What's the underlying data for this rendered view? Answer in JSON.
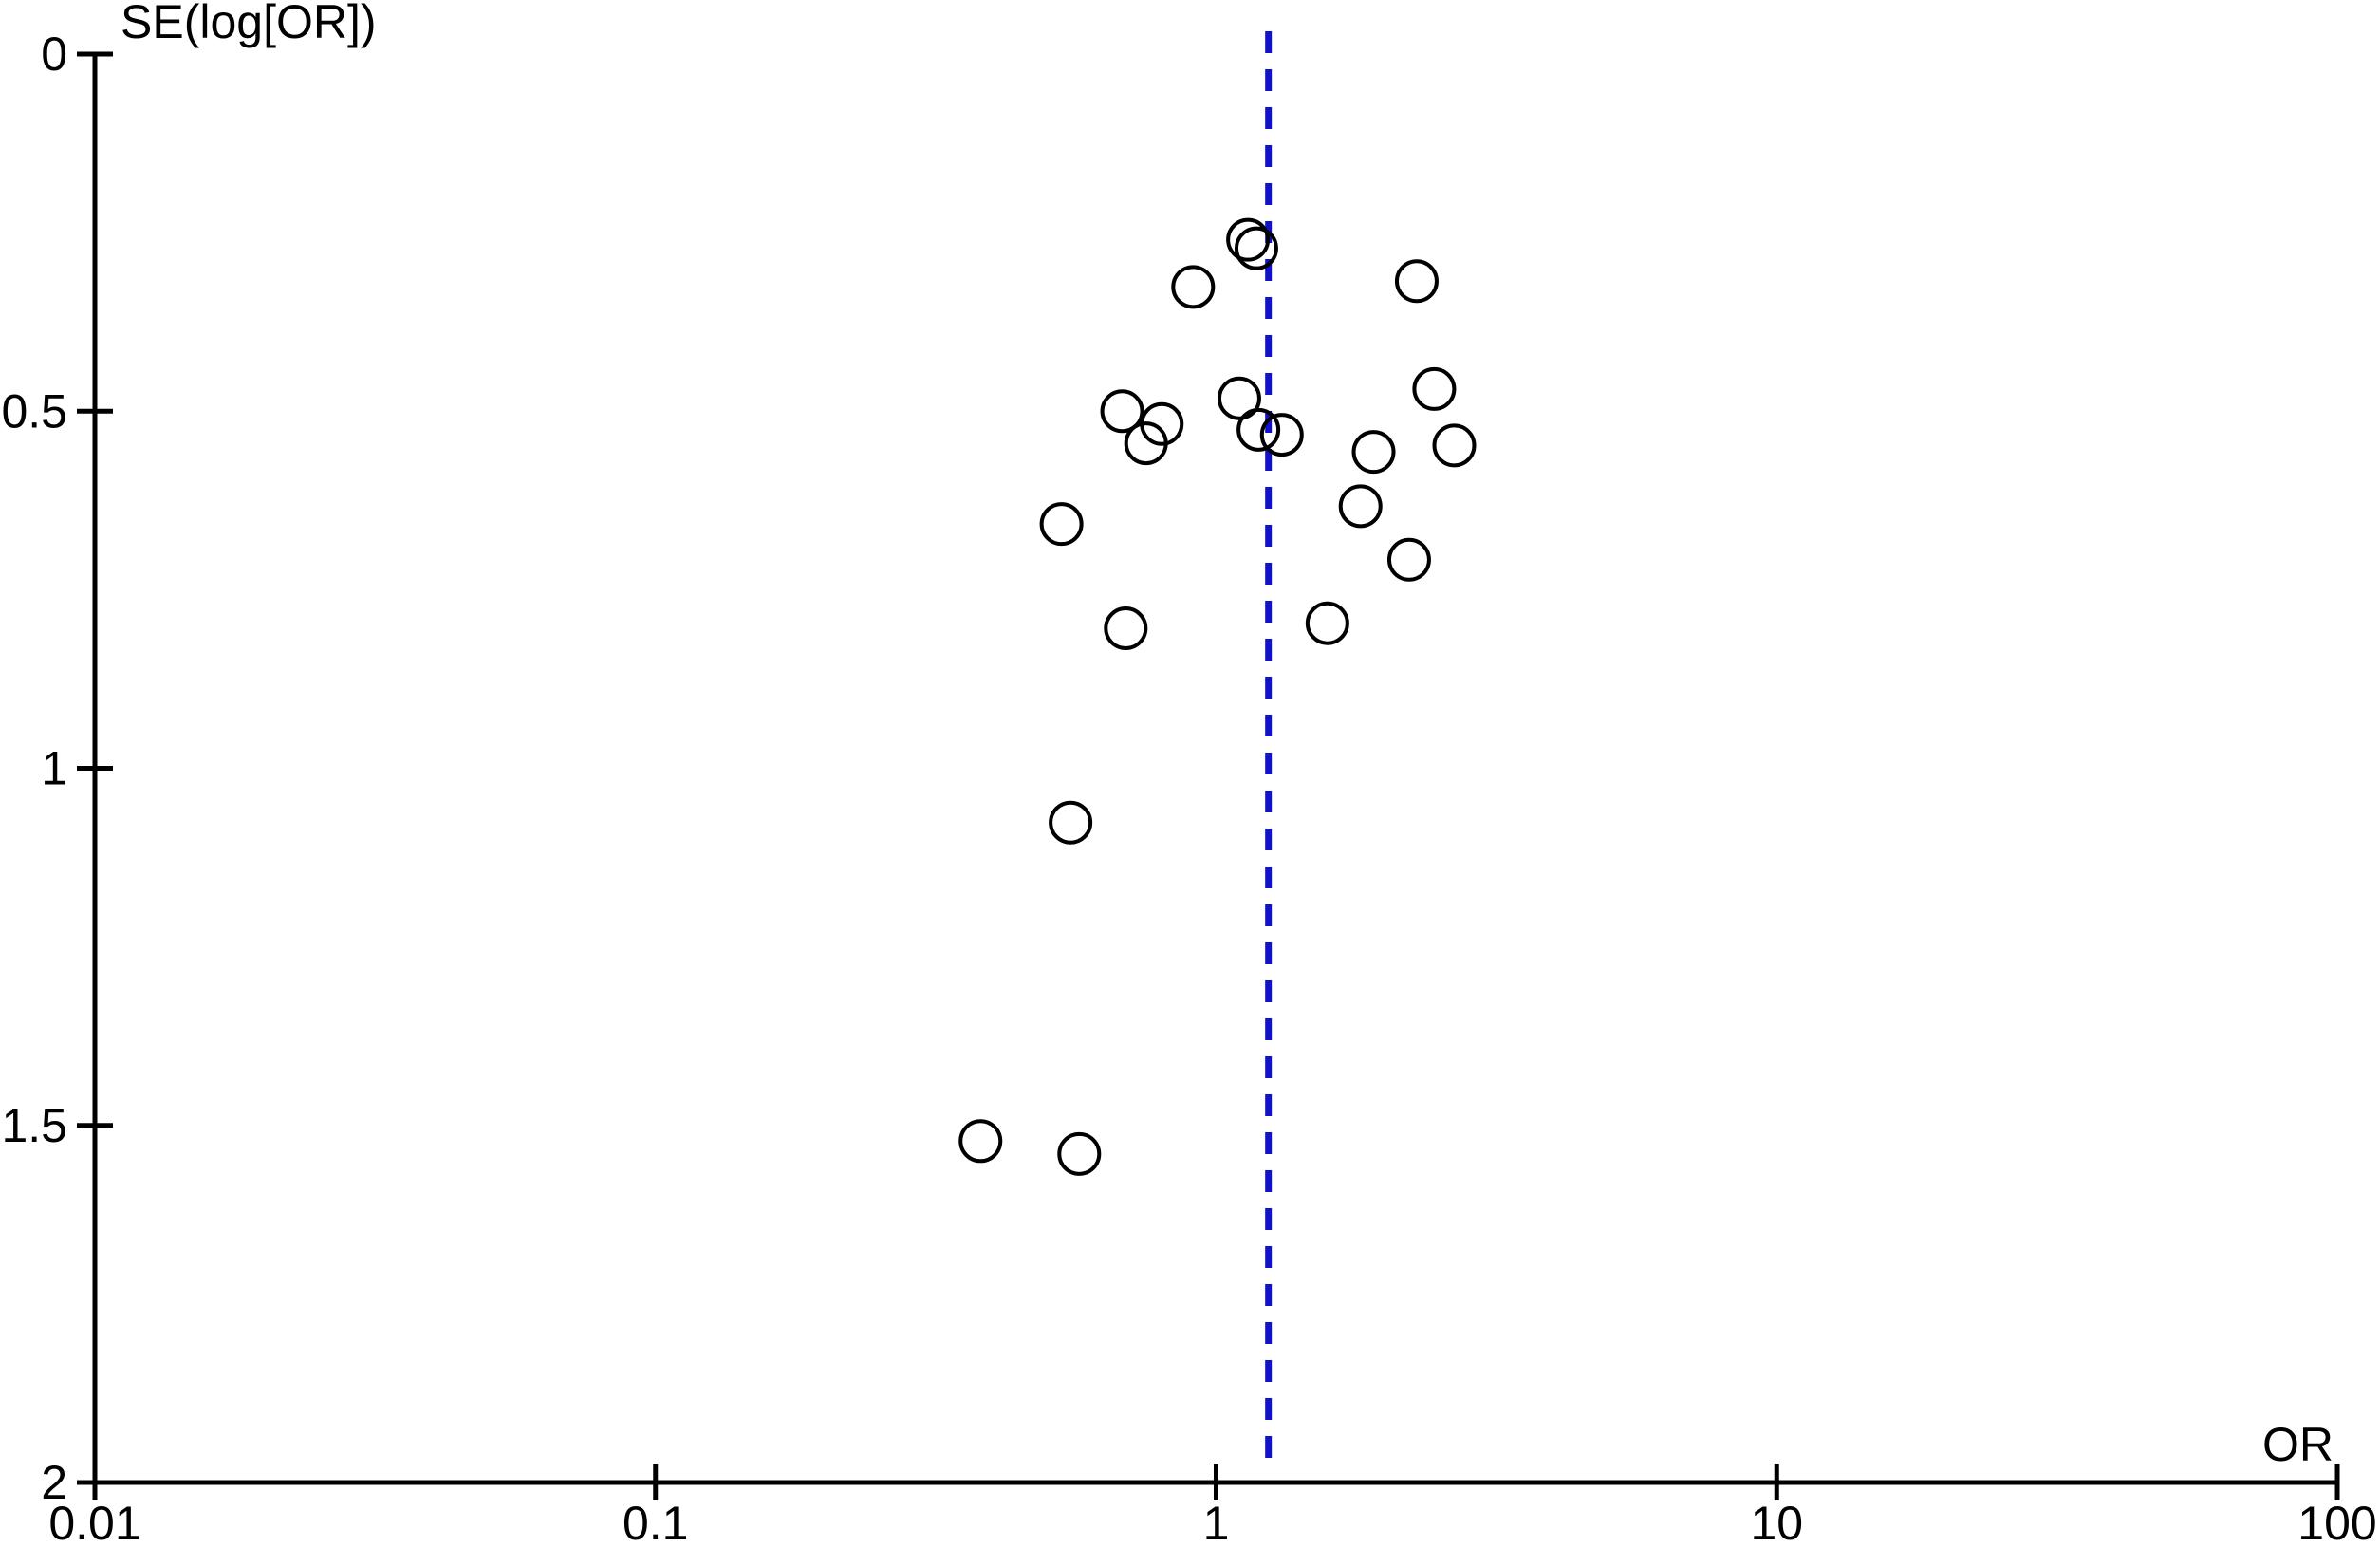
{
  "figure": {
    "background": "#ffffff",
    "axis_color": "#000000",
    "marker_color": "#000000"
  },
  "chart_data": {
    "type": "scatter",
    "subtype": "funnel-plot",
    "title": "",
    "xlabel": "OR",
    "ylabel": "SE(log[OR])",
    "x_scale": "log",
    "xlim": [
      0.01,
      100
    ],
    "x_tick_values": [
      0.01,
      0.1,
      1,
      10,
      100
    ],
    "x_tick_labels": [
      "0.01",
      "0.1",
      "1",
      "10",
      "100"
    ],
    "ylim": [
      0,
      2
    ],
    "y_inverted": true,
    "y_tick_values": [
      0,
      0.5,
      1,
      1.5,
      2
    ],
    "y_tick_labels": [
      "0",
      "0.5",
      "1",
      "1.5",
      "2"
    ],
    "grid": false,
    "legend": "none",
    "reference_line": {
      "or": 1.24,
      "style": "dashed",
      "color": "#1111cc"
    },
    "marker": {
      "shape": "open-circle",
      "stroke_color": "#000000",
      "fill": "none"
    },
    "points": [
      {
        "or": 1.14,
        "se": 0.26
      },
      {
        "or": 1.18,
        "se": 0.272
      },
      {
        "or": 0.91,
        "se": 0.326
      },
      {
        "or": 2.28,
        "se": 0.318
      },
      {
        "or": 0.68,
        "se": 0.5
      },
      {
        "or": 0.8,
        "se": 0.518
      },
      {
        "or": 0.75,
        "se": 0.545
      },
      {
        "or": 1.1,
        "se": 0.482
      },
      {
        "or": 1.19,
        "se": 0.526
      },
      {
        "or": 1.31,
        "se": 0.533
      },
      {
        "or": 2.45,
        "se": 0.469
      },
      {
        "or": 1.91,
        "se": 0.557
      },
      {
        "or": 2.66,
        "se": 0.548
      },
      {
        "or": 1.81,
        "se": 0.633
      },
      {
        "or": 0.53,
        "se": 0.658
      },
      {
        "or": 2.21,
        "se": 0.708
      },
      {
        "or": 0.69,
        "se": 0.804
      },
      {
        "or": 1.58,
        "se": 0.797
      },
      {
        "or": 0.55,
        "se": 1.076
      },
      {
        "or": 0.38,
        "se": 1.522
      },
      {
        "or": 0.57,
        "se": 1.54
      }
    ]
  }
}
